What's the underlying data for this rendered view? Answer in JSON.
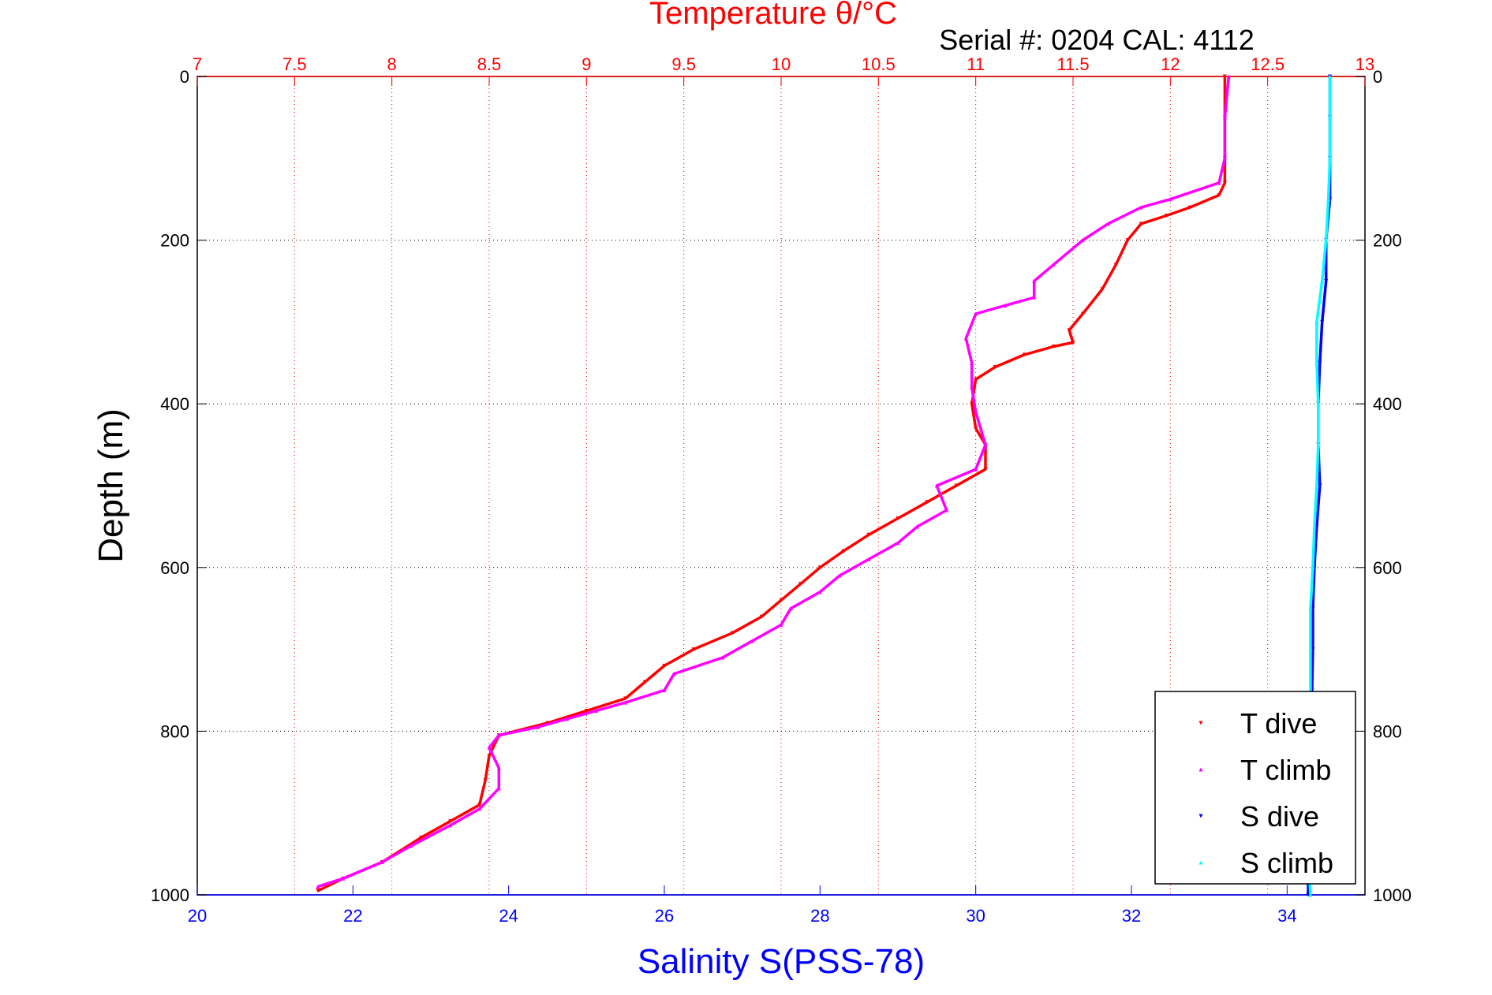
{
  "chart_data": {
    "type": "scatter",
    "title": "Temperature θ/°C",
    "subtitle": "Serial #: 0204  CAL: 4112",
    "xlabel": "Salinity S(PSS-78)",
    "ylabel": "Depth (m)",
    "temperature_axis": {
      "position": "top",
      "range": [
        7,
        13
      ],
      "ticks": [
        "7",
        "7.5",
        "8",
        "8.5",
        "9",
        "9.5",
        "10",
        "10.5",
        "11",
        "11.5",
        "12",
        "12.5",
        "13"
      ],
      "color": "#ff0000",
      "grid": true
    },
    "salinity_axis": {
      "position": "bottom",
      "range": [
        20,
        35
      ],
      "ticks": [
        "20",
        "22",
        "24",
        "26",
        "28",
        "30",
        "32",
        "34"
      ],
      "color": "#0000ff"
    },
    "depth_axis": {
      "range": [
        0,
        1000
      ],
      "reversed": true,
      "ticks": [
        "0",
        "200",
        "400",
        "600",
        "800",
        "1000"
      ],
      "grid": true
    },
    "legend": {
      "position": "bottom-right",
      "entries": [
        "T dive",
        "T climb",
        "S dive",
        "S climb"
      ]
    },
    "series": [
      {
        "name": "T dive",
        "axis": "temperature",
        "color": "#ff0000",
        "marker": "triangle-down",
        "points": [
          [
            12.28,
            0
          ],
          [
            12.28,
            50
          ],
          [
            12.28,
            100
          ],
          [
            12.28,
            130
          ],
          [
            12.25,
            145
          ],
          [
            12.1,
            160
          ],
          [
            11.98,
            170
          ],
          [
            11.85,
            180
          ],
          [
            11.78,
            200
          ],
          [
            11.72,
            230
          ],
          [
            11.65,
            260
          ],
          [
            11.55,
            290
          ],
          [
            11.48,
            310
          ],
          [
            11.5,
            325
          ],
          [
            11.4,
            330
          ],
          [
            11.25,
            340
          ],
          [
            11.1,
            355
          ],
          [
            11.0,
            370
          ],
          [
            10.98,
            400
          ],
          [
            11.0,
            430
          ],
          [
            11.05,
            450
          ],
          [
            11.05,
            480
          ],
          [
            10.9,
            500
          ],
          [
            10.75,
            520
          ],
          [
            10.6,
            540
          ],
          [
            10.45,
            560
          ],
          [
            10.32,
            580
          ],
          [
            10.2,
            600
          ],
          [
            10.1,
            620
          ],
          [
            10.0,
            640
          ],
          [
            9.9,
            660
          ],
          [
            9.75,
            680
          ],
          [
            9.55,
            700
          ],
          [
            9.4,
            720
          ],
          [
            9.3,
            740
          ],
          [
            9.2,
            760
          ],
          [
            9.0,
            775
          ],
          [
            8.8,
            790
          ],
          [
            8.55,
            805
          ],
          [
            8.5,
            830
          ],
          [
            8.48,
            860
          ],
          [
            8.45,
            890
          ],
          [
            8.3,
            910
          ],
          [
            8.15,
            930
          ],
          [
            7.95,
            960
          ],
          [
            7.75,
            980
          ],
          [
            7.62,
            995
          ]
        ]
      },
      {
        "name": "T climb",
        "axis": "temperature",
        "color": "#ff00ff",
        "marker": "triangle-up",
        "points": [
          [
            12.3,
            0
          ],
          [
            12.28,
            50
          ],
          [
            12.28,
            100
          ],
          [
            12.25,
            130
          ],
          [
            12.0,
            150
          ],
          [
            11.85,
            160
          ],
          [
            11.68,
            180
          ],
          [
            11.55,
            200
          ],
          [
            11.4,
            230
          ],
          [
            11.3,
            250
          ],
          [
            11.3,
            270
          ],
          [
            11.15,
            280
          ],
          [
            11.0,
            290
          ],
          [
            10.95,
            320
          ],
          [
            10.98,
            350
          ],
          [
            10.98,
            380
          ],
          [
            11.0,
            410
          ],
          [
            11.05,
            450
          ],
          [
            11.0,
            480
          ],
          [
            10.8,
            500
          ],
          [
            10.85,
            530
          ],
          [
            10.7,
            550
          ],
          [
            10.6,
            570
          ],
          [
            10.45,
            590
          ],
          [
            10.3,
            610
          ],
          [
            10.2,
            630
          ],
          [
            10.05,
            650
          ],
          [
            10.0,
            670
          ],
          [
            9.85,
            690
          ],
          [
            9.7,
            710
          ],
          [
            9.45,
            730
          ],
          [
            9.4,
            750
          ],
          [
            9.2,
            765
          ],
          [
            9.05,
            775
          ],
          [
            8.9,
            785
          ],
          [
            8.75,
            795
          ],
          [
            8.55,
            805
          ],
          [
            8.5,
            820
          ],
          [
            8.55,
            845
          ],
          [
            8.55,
            870
          ],
          [
            8.45,
            895
          ],
          [
            8.3,
            915
          ],
          [
            8.1,
            940
          ],
          [
            7.95,
            960
          ],
          [
            7.75,
            980
          ],
          [
            7.62,
            990
          ]
        ]
      },
      {
        "name": "S dive",
        "axis": "salinity",
        "color": "#0000ff",
        "marker": "triangle-down",
        "points": [
          [
            34.55,
            0
          ],
          [
            34.55,
            50
          ],
          [
            34.55,
            100
          ],
          [
            34.55,
            150
          ],
          [
            34.5,
            200
          ],
          [
            34.5,
            250
          ],
          [
            34.45,
            300
          ],
          [
            34.42,
            350
          ],
          [
            34.4,
            400
          ],
          [
            34.4,
            450
          ],
          [
            34.42,
            500
          ],
          [
            34.38,
            550
          ],
          [
            34.35,
            600
          ],
          [
            34.33,
            650
          ],
          [
            34.33,
            700
          ],
          [
            34.32,
            750
          ],
          [
            34.3,
            800
          ],
          [
            34.28,
            850
          ],
          [
            34.28,
            900
          ],
          [
            34.27,
            950
          ],
          [
            34.27,
            1000
          ]
        ]
      },
      {
        "name": "S climb",
        "axis": "salinity",
        "color": "#00ffff",
        "marker": "triangle-up",
        "points": [
          [
            34.55,
            0
          ],
          [
            34.55,
            50
          ],
          [
            34.55,
            100
          ],
          [
            34.53,
            150
          ],
          [
            34.5,
            200
          ],
          [
            34.45,
            250
          ],
          [
            34.38,
            300
          ],
          [
            34.38,
            350
          ],
          [
            34.4,
            400
          ],
          [
            34.4,
            450
          ],
          [
            34.38,
            500
          ],
          [
            34.35,
            550
          ],
          [
            34.33,
            600
          ],
          [
            34.3,
            650
          ],
          [
            34.3,
            700
          ],
          [
            34.3,
            750
          ],
          [
            34.28,
            800
          ],
          [
            34.27,
            850
          ],
          [
            34.27,
            900
          ],
          [
            34.27,
            950
          ],
          [
            34.3,
            1000
          ]
        ]
      }
    ]
  }
}
